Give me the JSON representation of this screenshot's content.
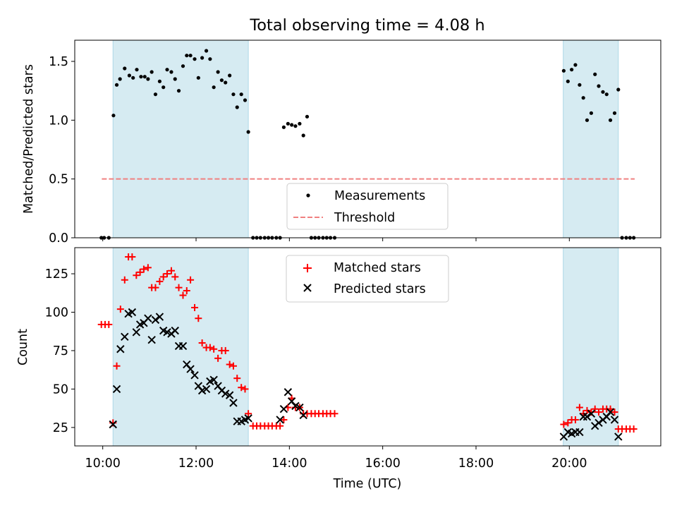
{
  "title": "Total observing time = 4.08 h",
  "colors": {
    "shade": "#add8e6",
    "measurements": "#000000",
    "threshold": "#f08080",
    "matched": "#ff0000",
    "predicted": "#000000"
  },
  "chart_data": [
    {
      "type": "scatter",
      "ylabel": "Matched/Predicted stars",
      "ylim": [
        0,
        1.68
      ],
      "yticks": [
        "0.0",
        "0.5",
        "1.0",
        "1.5"
      ],
      "ytick_values": [
        0,
        0.5,
        1.0,
        1.5
      ],
      "xlim": [
        9.4,
        21.96
      ],
      "xtick_values": [
        10,
        12,
        14,
        16,
        18,
        20
      ],
      "shaded_intervals": [
        [
          10.22,
          13.12
        ],
        [
          19.87,
          21.05
        ]
      ],
      "legend_placement": "lower center",
      "legend": [
        "Measurements",
        "Threshold"
      ],
      "threshold": {
        "name": "Threshold",
        "y": 0.5,
        "x_range": [
          9.98,
          21.4
        ]
      },
      "series": [
        {
          "name": "Measurements",
          "x": [
            9.97,
            10.03,
            10.13,
            10.23,
            10.3,
            10.37,
            10.47,
            10.57,
            10.65,
            10.73,
            10.82,
            10.9,
            10.97,
            11.05,
            11.13,
            11.22,
            11.3,
            11.38,
            11.47,
            11.55,
            11.63,
            11.72,
            11.8,
            11.88,
            11.97,
            12.05,
            12.13,
            12.22,
            12.3,
            12.38,
            12.47,
            12.55,
            12.63,
            12.72,
            12.8,
            12.88,
            12.97,
            13.05,
            13.12,
            13.22,
            13.3,
            13.38,
            13.47,
            13.55,
            13.63,
            13.72,
            13.8,
            13.88,
            13.97,
            14.05,
            14.13,
            14.22,
            14.3,
            14.38,
            14.47,
            14.55,
            14.63,
            14.72,
            14.8,
            14.88,
            14.97,
            19.88,
            19.97,
            20.05,
            20.13,
            20.22,
            20.3,
            20.38,
            20.47,
            20.55,
            20.63,
            20.72,
            20.8,
            20.88,
            20.97,
            21.05,
            21.13,
            21.22,
            21.3,
            21.38
          ],
          "y": [
            0,
            0,
            0,
            1.04,
            1.3,
            1.35,
            1.44,
            1.38,
            1.36,
            1.43,
            1.37,
            1.37,
            1.35,
            1.41,
            1.22,
            1.33,
            1.28,
            1.43,
            1.41,
            1.35,
            1.25,
            1.46,
            1.55,
            1.55,
            1.52,
            1.36,
            1.53,
            1.59,
            1.52,
            1.28,
            1.41,
            1.34,
            1.32,
            1.38,
            1.22,
            1.11,
            1.22,
            1.17,
            0.9,
            0,
            0,
            0,
            0,
            0,
            0,
            0,
            0,
            0.94,
            0.97,
            0.96,
            0.95,
            0.97,
            0.87,
            1.03,
            0,
            0,
            0,
            0,
            0,
            0,
            0,
            1.42,
            1.33,
            1.43,
            1.47,
            1.3,
            1.19,
            1.0,
            1.06,
            1.39,
            1.29,
            1.24,
            1.22,
            1.0,
            1.06,
            1.26,
            0,
            0,
            0,
            0
          ]
        }
      ]
    },
    {
      "type": "scatter",
      "xlabel": "Time (UTC)",
      "ylabel": "Count",
      "ylim": [
        13,
        142
      ],
      "yticks": [
        "25",
        "50",
        "75",
        "100",
        "125"
      ],
      "ytick_values": [
        25,
        50,
        75,
        100,
        125
      ],
      "xlim": [
        9.4,
        21.96
      ],
      "xticks": [
        "10:00",
        "12:00",
        "14:00",
        "16:00",
        "18:00",
        "20:00"
      ],
      "xtick_values": [
        10,
        12,
        14,
        16,
        18,
        20
      ],
      "shaded_intervals": [
        [
          10.22,
          13.12
        ],
        [
          19.87,
          21.05
        ]
      ],
      "legend_placement": "upper center",
      "legend": [
        "Matched stars",
        "Predicted stars"
      ],
      "series": [
        {
          "name": "Matched stars",
          "x": [
            9.97,
            10.05,
            10.13,
            10.22,
            10.3,
            10.38,
            10.47,
            10.55,
            10.63,
            10.72,
            10.8,
            10.88,
            10.97,
            11.05,
            11.13,
            11.22,
            11.3,
            11.38,
            11.47,
            11.55,
            11.63,
            11.72,
            11.8,
            11.88,
            11.97,
            12.05,
            12.13,
            12.22,
            12.3,
            12.38,
            12.47,
            12.55,
            12.63,
            12.72,
            12.8,
            12.88,
            12.97,
            13.05,
            13.12,
            13.22,
            13.3,
            13.38,
            13.47,
            13.55,
            13.63,
            13.72,
            13.8,
            13.88,
            13.97,
            14.05,
            14.13,
            14.22,
            14.3,
            14.38,
            14.47,
            14.55,
            14.63,
            14.72,
            14.8,
            14.88,
            14.97,
            19.88,
            19.97,
            20.05,
            20.13,
            20.22,
            20.3,
            20.38,
            20.47,
            20.55,
            20.63,
            20.72,
            20.8,
            20.88,
            20.97,
            21.05,
            21.13,
            21.22,
            21.3,
            21.38
          ],
          "y": [
            92,
            92,
            92,
            28,
            65,
            102,
            121,
            136,
            136,
            124,
            126,
            128,
            129,
            116,
            116,
            120,
            123,
            125,
            127,
            123,
            116,
            111,
            114,
            121,
            103,
            96,
            80,
            77,
            77,
            76,
            70,
            75,
            75,
            66,
            65,
            57,
            51,
            50,
            34,
            26,
            26,
            26,
            26,
            26,
            26,
            26,
            26,
            30,
            38,
            44,
            38,
            38,
            34,
            34,
            34,
            34,
            34,
            34,
            34,
            34,
            34,
            27,
            28,
            30,
            30,
            38,
            34,
            36,
            35,
            37,
            35,
            37,
            37,
            37,
            35,
            24,
            24,
            24,
            24,
            24
          ]
        },
        {
          "name": "Predicted stars",
          "x": [
            10.22,
            10.3,
            10.38,
            10.47,
            10.55,
            10.63,
            10.72,
            10.8,
            10.88,
            10.97,
            11.05,
            11.13,
            11.22,
            11.3,
            11.38,
            11.47,
            11.55,
            11.63,
            11.72,
            11.8,
            11.88,
            11.97,
            12.05,
            12.13,
            12.22,
            12.3,
            12.38,
            12.47,
            12.55,
            12.63,
            12.72,
            12.8,
            12.88,
            12.97,
            13.05,
            13.12,
            13.8,
            13.88,
            13.97,
            14.05,
            14.13,
            14.22,
            14.3,
            19.88,
            19.97,
            20.05,
            20.13,
            20.22,
            20.3,
            20.38,
            20.47,
            20.55,
            20.63,
            20.72,
            20.8,
            20.88,
            20.97,
            21.05
          ],
          "y": [
            27,
            50,
            76,
            84,
            99,
            100,
            87,
            92,
            93,
            96,
            82,
            95,
            97,
            88,
            87,
            86,
            88,
            78,
            78,
            66,
            63,
            59,
            52,
            49,
            50,
            55,
            56,
            52,
            49,
            47,
            46,
            41,
            29,
            29,
            30,
            31,
            30,
            37,
            48,
            42,
            39,
            38,
            33,
            19,
            22,
            21,
            22,
            22,
            32,
            32,
            34,
            26,
            28,
            30,
            32,
            35,
            30,
            19
          ]
        }
      ]
    }
  ]
}
